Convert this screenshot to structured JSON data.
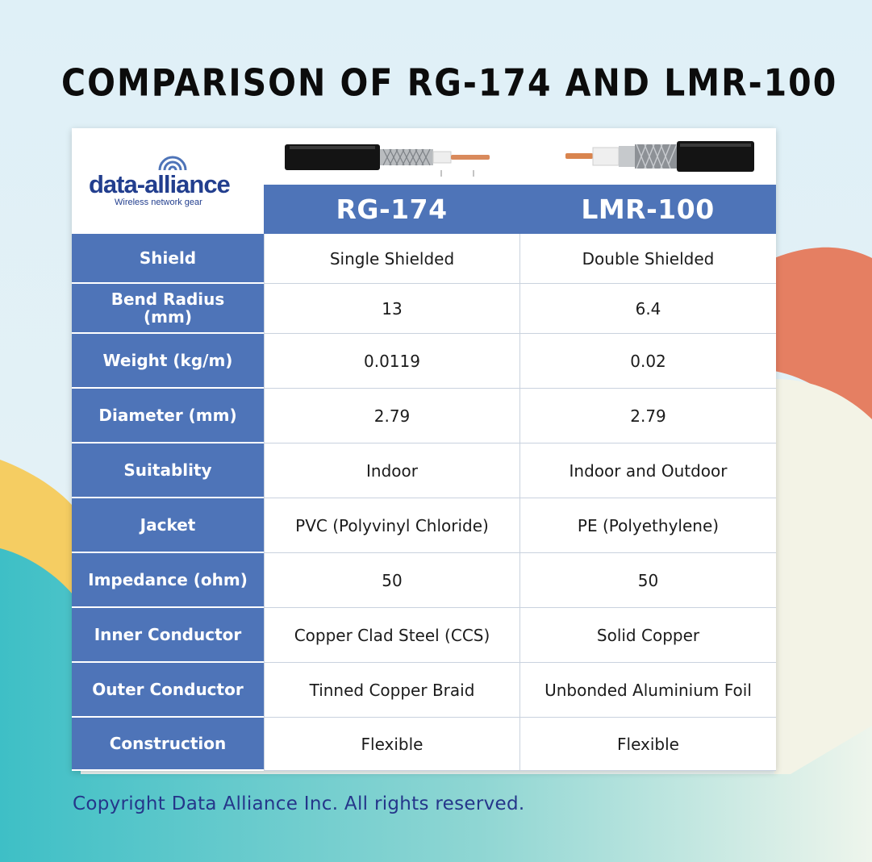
{
  "title": "Comparison of RG-174 and LMR-100",
  "logo": {
    "name": "data-alliance",
    "tagline": "Wireless network gear"
  },
  "columns": [
    "RG-174",
    "LMR-100"
  ],
  "rows": [
    {
      "label": "Shield",
      "rg174": "Single Shielded",
      "lmr100": "Double Shielded"
    },
    {
      "label": "Bend Radius (mm)",
      "rg174": "13",
      "lmr100": "6.4"
    },
    {
      "label": "Weight (kg/m)",
      "rg174": "0.0119",
      "lmr100": "0.02"
    },
    {
      "label": "Diameter (mm)",
      "rg174": "2.79",
      "lmr100": "2.79"
    },
    {
      "label": "Suitablity",
      "rg174": "Indoor",
      "lmr100": "Indoor and Outdoor"
    },
    {
      "label": "Jacket",
      "rg174": "PVC (Polyvinyl Chloride)",
      "lmr100": "PE (Polyethylene)"
    },
    {
      "label": "Impedance (ohm)",
      "rg174": "50",
      "lmr100": "50"
    },
    {
      "label": "Inner Conductor",
      "rg174": "Copper Clad Steel (CCS)",
      "lmr100": "Solid Copper"
    },
    {
      "label": "Outer Conductor",
      "rg174": "Tinned Copper Braid",
      "lmr100": "Unbonded Aluminium Foil"
    },
    {
      "label": "Construction",
      "rg174": "Flexible",
      "lmr100": "Flexible"
    }
  ],
  "copyright": "Copyright Data Alliance Inc.  All rights reserved.",
  "colors": {
    "header_blue": "#4e74b8",
    "logo_blue": "#223e8e",
    "copyright_blue": "#25368a",
    "coral": "#e57f62",
    "yellow": "#f5cd62",
    "teal": "#4ec4c8"
  },
  "icons": [
    "wifi-waves-icon",
    "rg174-cable-image",
    "lmr100-cable-image"
  ]
}
